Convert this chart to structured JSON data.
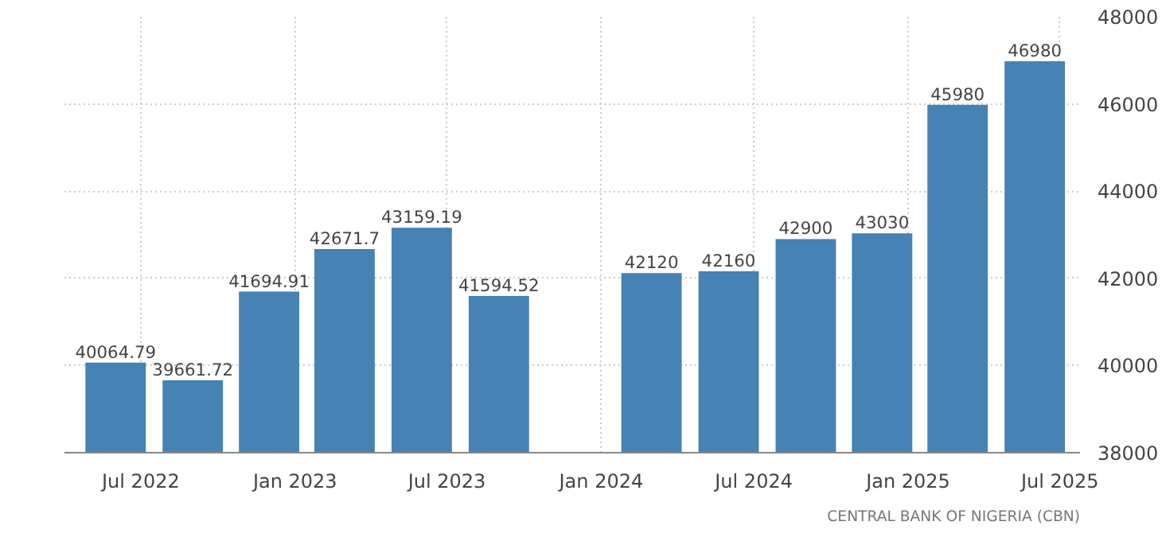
{
  "chart_data": {
    "type": "bar",
    "x": [
      "2022-06",
      "2022-09",
      "2022-12",
      "2023-03",
      "2023-06",
      "2023-09",
      "2023-12",
      "2024-03",
      "2024-06",
      "2024-09",
      "2024-12",
      "2025-03",
      "2025-06"
    ],
    "values": [
      40064.79,
      39661.72,
      41694.91,
      42671.7,
      43159.19,
      41594.52,
      null,
      42120,
      42160,
      42900,
      43030,
      45980,
      46980
    ],
    "value_labels": [
      "40064.79",
      "39661.72",
      "41694.91",
      "42671.7",
      "43159.19",
      "41594.52",
      null,
      "42120",
      "42160",
      "42900",
      "43030",
      "45980",
      "46980"
    ],
    "color": "#4682b4",
    "xlim": [
      "2022-04-01",
      "2025-07-25"
    ],
    "xticks": [
      {
        "value": "2022-07",
        "label": "Jul 2022"
      },
      {
        "value": "2023-01",
        "label": "Jan 2023"
      },
      {
        "value": "2023-07",
        "label": "Jul 2023"
      },
      {
        "value": "2024-01",
        "label": "Jan 2024"
      },
      {
        "value": "2024-07",
        "label": "Jul 2024"
      },
      {
        "value": "2025-01",
        "label": "Jan 2025"
      },
      {
        "value": "2025-07",
        "label": "Jul 2025"
      }
    ],
    "ylim": [
      38000,
      48000
    ],
    "yticks": [
      38000,
      40000,
      42000,
      44000,
      46000,
      48000
    ],
    "grid": true,
    "annotations": [
      "CENTRAL BANK OF NIGERIA (CBN)"
    ]
  }
}
